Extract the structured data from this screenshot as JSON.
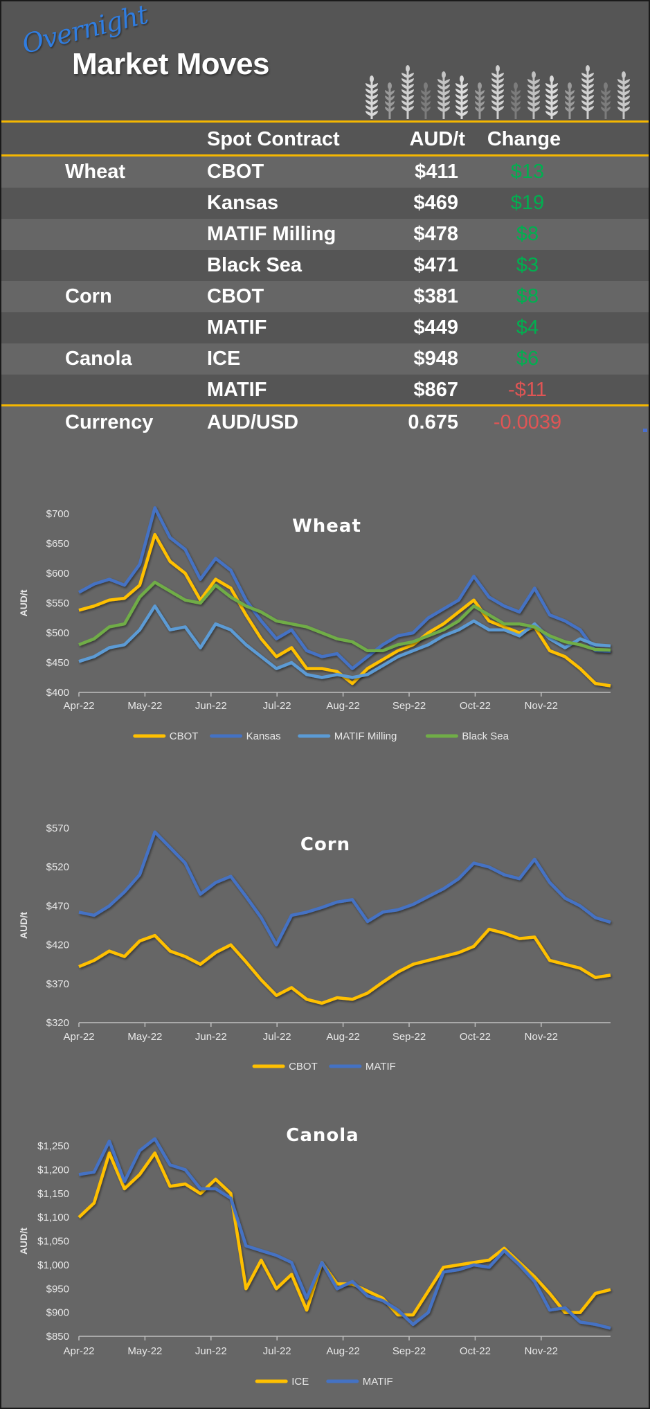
{
  "header": {
    "script_word": "Overnight",
    "title": "Market Moves",
    "decoration": "wheat-stalks-icon"
  },
  "colors": {
    "accent_line": "#f5b700",
    "header_bg": "#555555",
    "page_bg": "#666666",
    "positive": "#00b050",
    "negative": "#e05555",
    "series_yellow": "#ffc000",
    "series_blue": "#4472c4",
    "series_lightblue": "#5b9bd5",
    "series_green": "#70ad47"
  },
  "table": {
    "columns": [
      "",
      "Spot Contract",
      "AUD/t",
      "Change"
    ],
    "rows": [
      {
        "group": "Wheat",
        "contract": "CBOT",
        "price": "$411",
        "change": "$13",
        "direction": "up"
      },
      {
        "group": "",
        "contract": "Kansas",
        "price": "$469",
        "change": "$19",
        "direction": "up"
      },
      {
        "group": "",
        "contract": "MATIF Milling",
        "price": "$478",
        "change": "$8",
        "direction": "up"
      },
      {
        "group": "",
        "contract": "Black Sea",
        "price": "$471",
        "change": "$3",
        "direction": "up"
      },
      {
        "group": "Corn",
        "contract": "CBOT",
        "price": "$381",
        "change": "$8",
        "direction": "up"
      },
      {
        "group": "",
        "contract": "MATIF",
        "price": "$449",
        "change": "$4",
        "direction": "up"
      },
      {
        "group": "Canola",
        "contract": "ICE",
        "price": "$948",
        "change": "$6",
        "direction": "up"
      },
      {
        "group": "",
        "contract": "MATIF",
        "price": "$867",
        "change": "-$11",
        "direction": "down"
      }
    ],
    "currency": {
      "group": "Currency",
      "contract": "AUD/USD",
      "price": "0.675",
      "change": "-0.0039",
      "direction": "down"
    }
  },
  "chart_data": [
    {
      "type": "line",
      "title": "Wheat",
      "xlabel": "",
      "ylabel": "AUD/t",
      "ylim": [
        400,
        700
      ],
      "yticks": [
        "$400",
        "$450",
        "$500",
        "$550",
        "$600",
        "$650",
        "$700"
      ],
      "categories": [
        "Apr-22",
        "May-22",
        "Jun-22",
        "Jul-22",
        "Aug-22",
        "Sep-22",
        "Oct-22",
        "Nov-22"
      ],
      "grid": false,
      "legend_position": "bottom",
      "x_points": [
        "Apr-01",
        "Apr-08",
        "Apr-15",
        "Apr-22",
        "Apr-29",
        "May-06",
        "May-13",
        "May-20",
        "May-27",
        "Jun-03",
        "Jun-10",
        "Jun-17",
        "Jun-24",
        "Jul-01",
        "Jul-08",
        "Jul-15",
        "Jul-22",
        "Jul-29",
        "Aug-05",
        "Aug-12",
        "Aug-19",
        "Aug-26",
        "Sep-02",
        "Sep-09",
        "Sep-16",
        "Sep-23",
        "Sep-30",
        "Oct-07",
        "Oct-14",
        "Oct-21",
        "Oct-28",
        "Nov-04",
        "Nov-11",
        "Nov-18",
        "Nov-25",
        "Nov-30"
      ],
      "series": [
        {
          "name": "CBOT",
          "color": "#ffc000",
          "values": [
            538,
            545,
            555,
            558,
            580,
            665,
            620,
            600,
            555,
            590,
            575,
            530,
            490,
            460,
            475,
            440,
            440,
            435,
            415,
            440,
            455,
            470,
            480,
            500,
            515,
            535,
            555,
            520,
            510,
            500,
            510,
            470,
            460,
            440,
            415,
            411
          ]
        },
        {
          "name": "Kansas",
          "color": "#4472c4",
          "values": [
            568,
            582,
            590,
            580,
            615,
            710,
            660,
            640,
            590,
            625,
            605,
            555,
            520,
            490,
            505,
            470,
            460,
            465,
            440,
            460,
            480,
            495,
            500,
            525,
            540,
            555,
            595,
            560,
            545,
            535,
            575,
            530,
            520,
            505,
            470,
            469
          ]
        },
        {
          "name": "MATIF Milling",
          "color": "#5b9bd5",
          "values": [
            452,
            460,
            475,
            480,
            505,
            545,
            505,
            510,
            475,
            515,
            505,
            480,
            460,
            440,
            450,
            430,
            425,
            430,
            425,
            430,
            445,
            460,
            470,
            480,
            495,
            505,
            520,
            505,
            505,
            495,
            515,
            490,
            475,
            490,
            480,
            478
          ]
        },
        {
          "name": "Black Sea",
          "color": "#70ad47",
          "values": [
            480,
            490,
            510,
            515,
            560,
            585,
            570,
            555,
            550,
            580,
            560,
            545,
            535,
            520,
            515,
            510,
            500,
            490,
            485,
            470,
            470,
            480,
            485,
            495,
            505,
            520,
            545,
            530,
            515,
            515,
            510,
            495,
            485,
            480,
            472,
            471
          ]
        }
      ]
    },
    {
      "type": "line",
      "title": "Corn",
      "xlabel": "",
      "ylabel": "AUD/t",
      "ylim": [
        320,
        570
      ],
      "yticks": [
        "$320",
        "$370",
        "$420",
        "$470",
        "$520",
        "$570"
      ],
      "categories": [
        "Apr-22",
        "May-22",
        "Jun-22",
        "Jul-22",
        "Aug-22",
        "Sep-22",
        "Oct-22",
        "Nov-22"
      ],
      "grid": false,
      "legend_position": "bottom",
      "x_points": [
        "Apr-01",
        "Apr-08",
        "Apr-15",
        "Apr-22",
        "Apr-29",
        "May-06",
        "May-13",
        "May-20",
        "May-27",
        "Jun-03",
        "Jun-10",
        "Jun-17",
        "Jun-24",
        "Jul-01",
        "Jul-08",
        "Jul-15",
        "Jul-22",
        "Jul-29",
        "Aug-05",
        "Aug-12",
        "Aug-19",
        "Aug-26",
        "Sep-02",
        "Sep-09",
        "Sep-16",
        "Sep-23",
        "Sep-30",
        "Oct-07",
        "Oct-14",
        "Oct-21",
        "Oct-28",
        "Nov-04",
        "Nov-11",
        "Nov-18",
        "Nov-25",
        "Nov-30"
      ],
      "series": [
        {
          "name": "CBOT",
          "color": "#ffc000",
          "values": [
            392,
            400,
            412,
            405,
            425,
            432,
            412,
            405,
            395,
            410,
            420,
            398,
            375,
            355,
            365,
            350,
            345,
            352,
            350,
            358,
            372,
            385,
            395,
            400,
            405,
            410,
            418,
            440,
            435,
            428,
            430,
            400,
            395,
            390,
            378,
            381
          ]
        },
        {
          "name": "MATIF",
          "color": "#4472c4",
          "values": [
            462,
            458,
            470,
            488,
            510,
            565,
            545,
            525,
            485,
            500,
            508,
            482,
            455,
            420,
            458,
            462,
            468,
            475,
            478,
            450,
            462,
            465,
            472,
            482,
            492,
            505,
            525,
            520,
            510,
            505,
            530,
            500,
            480,
            470,
            455,
            449
          ]
        }
      ]
    },
    {
      "type": "line",
      "title": "Canola",
      "xlabel": "",
      "ylabel": "AUD/t",
      "ylim": [
        850,
        1250
      ],
      "yticks": [
        "$850",
        "$900",
        "$950",
        "$1,000",
        "$1,050",
        "$1,100",
        "$1,150",
        "$1,200",
        "$1,250"
      ],
      "categories": [
        "Apr-22",
        "May-22",
        "Jun-22",
        "Jul-22",
        "Aug-22",
        "Sep-22",
        "Oct-22",
        "Nov-22"
      ],
      "grid": false,
      "legend_position": "bottom",
      "x_points": [
        "Apr-01",
        "Apr-08",
        "Apr-15",
        "Apr-22",
        "Apr-29",
        "May-06",
        "May-13",
        "May-20",
        "May-27",
        "Jun-03",
        "Jun-10",
        "Jun-17",
        "Jun-24",
        "Jul-01",
        "Jul-08",
        "Jul-15",
        "Jul-22",
        "Jul-29",
        "Aug-05",
        "Aug-12",
        "Aug-19",
        "Aug-26",
        "Sep-02",
        "Sep-09",
        "Sep-16",
        "Sep-23",
        "Sep-30",
        "Oct-07",
        "Oct-14",
        "Oct-21",
        "Oct-28",
        "Nov-04",
        "Nov-11",
        "Nov-18",
        "Nov-25",
        "Nov-30"
      ],
      "series": [
        {
          "name": "ICE",
          "color": "#ffc000",
          "values": [
            1100,
            1130,
            1235,
            1160,
            1190,
            1235,
            1165,
            1170,
            1150,
            1180,
            1150,
            950,
            1010,
            950,
            980,
            905,
            1005,
            960,
            960,
            945,
            930,
            895,
            895,
            945,
            995,
            1000,
            1005,
            1010,
            1035,
            1005,
            975,
            940,
            900,
            900,
            940,
            948
          ]
        },
        {
          "name": "MATIF",
          "color": "#4472c4",
          "values": [
            1190,
            1195,
            1260,
            1175,
            1240,
            1265,
            1210,
            1200,
            1160,
            1160,
            1140,
            1040,
            1030,
            1020,
            1005,
            930,
            1005,
            950,
            965,
            935,
            925,
            905,
            875,
            900,
            985,
            990,
            1000,
            995,
            1030,
            1000,
            965,
            905,
            910,
            880,
            875,
            867
          ]
        }
      ]
    }
  ]
}
